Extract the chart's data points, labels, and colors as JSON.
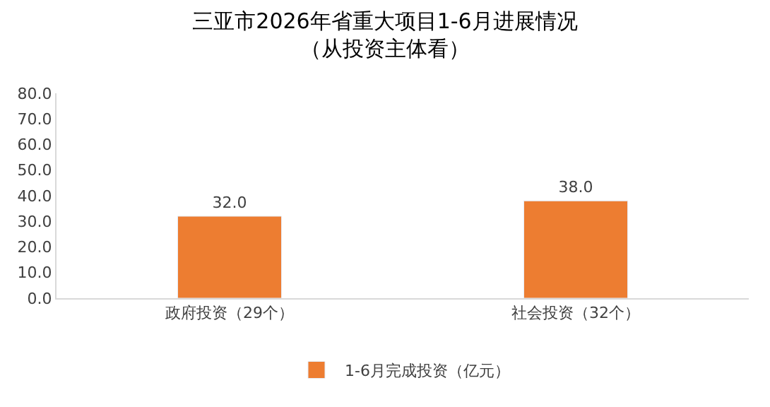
{
  "chart_data": {
    "type": "bar",
    "title": "三亚市2026年省重大项目1-6月进展情况",
    "subtitle": "（从投资主体看）",
    "categories": [
      "政府投资（29个）",
      "社会投资（32个）"
    ],
    "series": [
      {
        "name": "1-6月完成投资（亿元）",
        "color": "#ed7d31",
        "values": [
          32.0,
          38.0
        ],
        "value_labels": [
          "32.0",
          "38.0"
        ]
      }
    ],
    "ylim": [
      0,
      80
    ],
    "yticks": [
      {
        "value": 0,
        "label": "0.0"
      },
      {
        "value": 10,
        "label": "10.0"
      },
      {
        "value": 20,
        "label": "20.0"
      },
      {
        "value": 30,
        "label": "30.0"
      },
      {
        "value": 40,
        "label": "40.0"
      },
      {
        "value": 50,
        "label": "50.0"
      },
      {
        "value": 60,
        "label": "60.0"
      },
      {
        "value": 70,
        "label": "70.0"
      },
      {
        "value": 80,
        "label": "80.0"
      }
    ],
    "grid": false,
    "legend": "bottom"
  }
}
